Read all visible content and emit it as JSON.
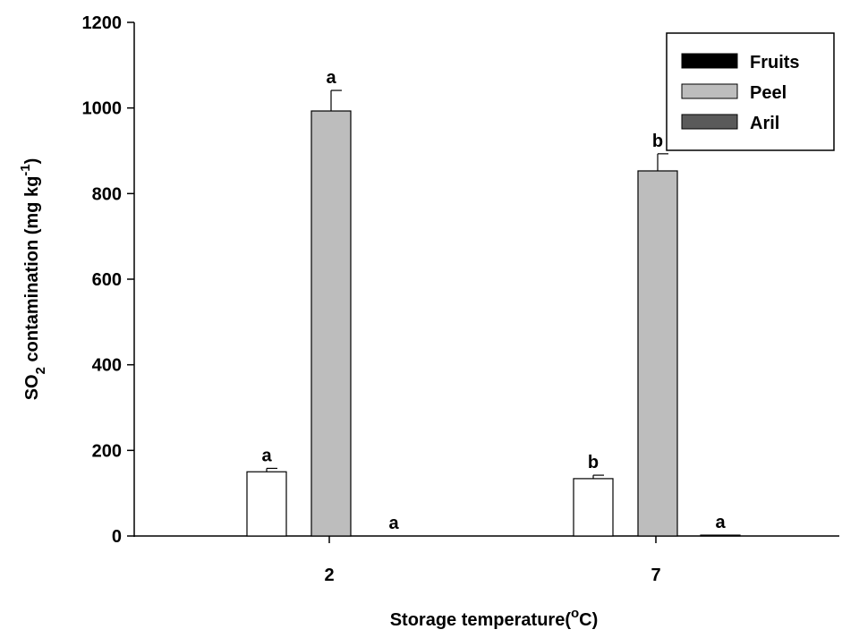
{
  "chart_data": {
    "type": "bar",
    "ylabel": [
      "SO",
      "2",
      " contamination (mg kg",
      "-1",
      ")"
    ],
    "xlabel": [
      "Storage temperature(",
      "o",
      "C)"
    ],
    "categories": [
      "2",
      "7"
    ],
    "series": [
      {
        "name": "Fruits",
        "color": "#ffffff",
        "legend_color": "#000000",
        "values": [
          150,
          134
        ],
        "errors": [
          8,
          8
        ],
        "letters": [
          "a",
          "b"
        ]
      },
      {
        "name": "Peel",
        "color": "#bdbdbd",
        "values": [
          993,
          853
        ],
        "errors": [
          48,
          40
        ],
        "letters": [
          "a",
          "b"
        ]
      },
      {
        "name": "Aril",
        "color": "#5a5a5a",
        "values": [
          0,
          2
        ],
        "errors": [
          0,
          0
        ],
        "letters": [
          "a",
          "a"
        ]
      }
    ],
    "ylim": [
      0,
      1200
    ],
    "yticks": [
      0,
      200,
      400,
      600,
      800,
      1000,
      1200
    ]
  }
}
